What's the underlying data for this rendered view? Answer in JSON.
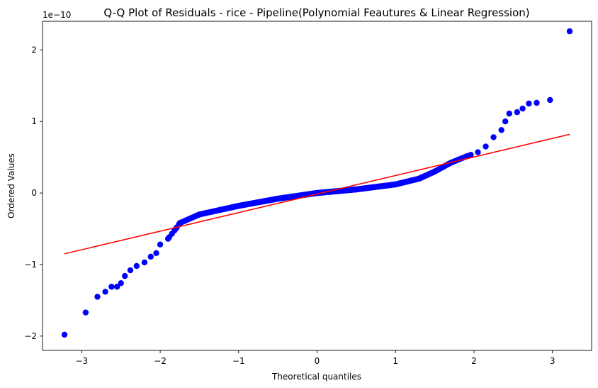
{
  "chart_data": {
    "type": "scatter",
    "title": "Q-Q Plot of Residuals - rice  - Pipeline(Polynomial Feautures & Linear Regression)",
    "xlabel": "Theoretical quantiles",
    "ylabel": "Ordered Values",
    "offset_text": "1e−10",
    "xlim": [
      -3.5,
      3.5
    ],
    "ylim": [
      -2.2,
      2.4
    ],
    "x_ticks": [
      -3,
      -2,
      -1,
      0,
      1,
      2,
      3
    ],
    "x_tick_labels": [
      "−3",
      "−2",
      "−1",
      "0",
      "1",
      "2",
      "3"
    ],
    "y_ticks": [
      -2,
      -1,
      0,
      1,
      2
    ],
    "y_tick_labels": [
      "−2",
      "−1",
      "0",
      "1",
      "2"
    ],
    "grid": false,
    "point_color": "#0000ff",
    "line_color": "#ff0000",
    "fit_line": {
      "x": [
        -3.22,
        3.22
      ],
      "y": [
        -0.85,
        0.82
      ]
    },
    "anchor_points": [
      [
        -3.22,
        -1.98
      ],
      [
        -2.95,
        -1.67
      ],
      [
        -2.8,
        -1.45
      ],
      [
        -2.7,
        -1.38
      ],
      [
        -2.62,
        -1.31
      ],
      [
        -2.55,
        -1.31
      ],
      [
        -2.5,
        -1.26
      ],
      [
        -2.45,
        -1.16
      ],
      [
        -2.38,
        -1.08
      ],
      [
        -2.3,
        -1.02
      ],
      [
        -2.2,
        -0.97
      ],
      [
        -2.12,
        -0.89
      ],
      [
        -2.05,
        -0.84
      ],
      [
        -2.0,
        -0.72
      ],
      [
        -1.9,
        -0.64
      ],
      [
        -1.8,
        -0.5
      ],
      [
        -1.75,
        -0.42
      ],
      [
        -1.5,
        -0.3
      ],
      [
        -1.0,
        -0.18
      ],
      [
        -0.5,
        -0.08
      ],
      [
        0.0,
        0.0
      ],
      [
        0.5,
        0.05
      ],
      [
        1.0,
        0.12
      ],
      [
        1.3,
        0.2
      ],
      [
        1.5,
        0.3
      ],
      [
        1.7,
        0.42
      ],
      [
        1.9,
        0.51
      ],
      [
        2.05,
        0.57
      ],
      [
        2.15,
        0.65
      ],
      [
        2.25,
        0.78
      ],
      [
        2.35,
        0.88
      ],
      [
        2.4,
        1.0
      ],
      [
        2.45,
        1.11
      ],
      [
        2.55,
        1.13
      ],
      [
        2.62,
        1.18
      ],
      [
        2.7,
        1.25
      ],
      [
        2.8,
        1.26
      ],
      [
        2.97,
        1.3
      ],
      [
        3.22,
        2.26
      ]
    ],
    "n_points": 420
  }
}
